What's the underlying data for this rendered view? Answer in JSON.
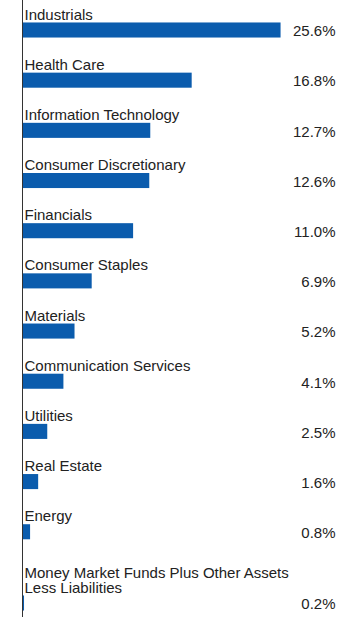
{
  "chart_data": {
    "type": "bar",
    "orientation": "horizontal",
    "categories": [
      "Industrials",
      "Health Care",
      "Information Technology",
      "Consumer Discretionary",
      "Financials",
      "Consumer Staples",
      "Materials",
      "Communication Services",
      "Utilities",
      "Real Estate",
      "Energy",
      "Money Market Funds Plus Other Assets\nLess Liabilities"
    ],
    "values": [
      25.6,
      16.8,
      12.7,
      12.6,
      11.0,
      6.9,
      5.2,
      4.1,
      2.5,
      1.6,
      0.8,
      0.2
    ],
    "value_labels": [
      "25.6%",
      "16.8%",
      "12.7%",
      "12.6%",
      "11.0%",
      "6.9%",
      "5.2%",
      "4.1%",
      "2.5%",
      "1.6%",
      "0.8%",
      "0.2%"
    ],
    "color": "#0b5cad",
    "xlim": [
      0,
      30
    ],
    "data_labels": true,
    "tick_labels": false,
    "grid": false
  }
}
